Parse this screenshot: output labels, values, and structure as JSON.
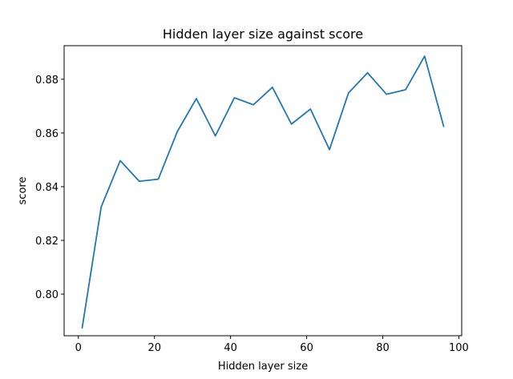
{
  "chart_data": {
    "type": "line",
    "title": "Hidden layer size against score",
    "xlabel": "Hidden layer size",
    "ylabel": "score",
    "xlim": [
      -3.75,
      100.75
    ],
    "ylim": [
      0.7845,
      0.8925
    ],
    "xticks": [
      0,
      20,
      40,
      60,
      80,
      100
    ],
    "xtick_labels": [
      "0",
      "20",
      "40",
      "60",
      "80",
      "100"
    ],
    "yticks": [
      0.8,
      0.82,
      0.84,
      0.86,
      0.88
    ],
    "ytick_labels": [
      "0.80",
      "0.82",
      "0.84",
      "0.86",
      "0.88"
    ],
    "grid": false,
    "series": [
      {
        "color": "#1f77b4",
        "x": [
          1,
          6,
          11,
          16,
          21,
          26,
          31,
          36,
          41,
          46,
          51,
          56,
          61,
          66,
          71,
          76,
          81,
          86,
          91,
          96
        ],
        "y": [
          0.7875,
          0.8325,
          0.8497,
          0.842,
          0.8428,
          0.8605,
          0.8728,
          0.8589,
          0.8731,
          0.8705,
          0.877,
          0.8633,
          0.8689,
          0.8538,
          0.8749,
          0.8824,
          0.8744,
          0.8761,
          0.8886,
          0.8625
        ]
      }
    ]
  }
}
